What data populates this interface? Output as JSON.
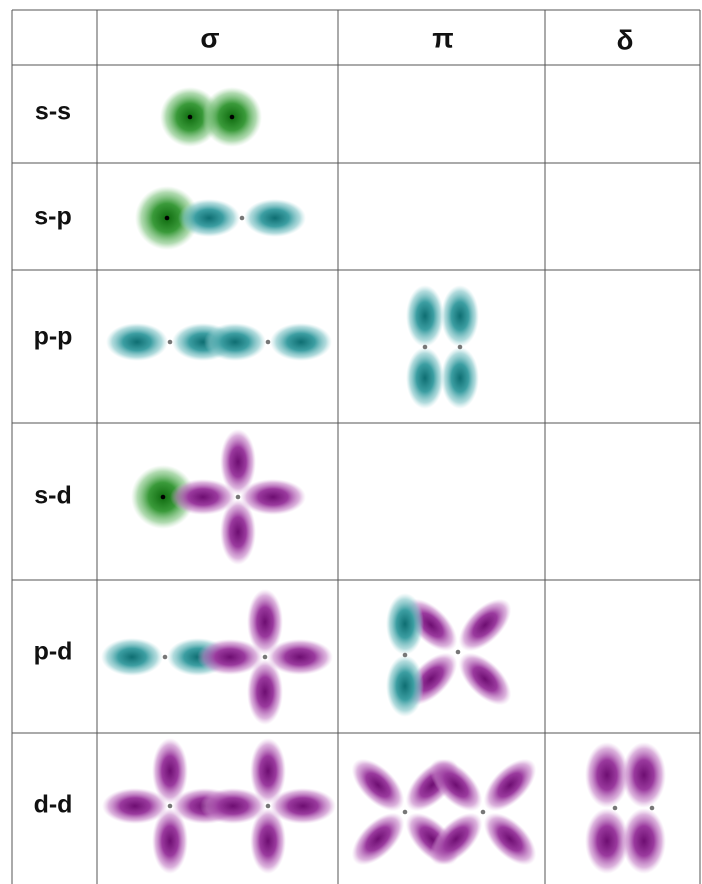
{
  "table": {
    "columns": [
      "σ",
      "π",
      "δ"
    ],
    "rows": [
      "s-s",
      "s-p",
      "p-p",
      "s-d",
      "p-d",
      "d-d"
    ]
  }
}
